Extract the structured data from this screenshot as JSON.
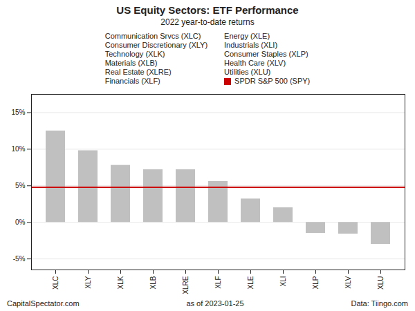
{
  "chart_data": {
    "type": "bar",
    "title": "US Equity Sectors: ETF Performance",
    "subtitle": "2022 year-to-date returns",
    "categories": [
      "XLC",
      "XLY",
      "XLK",
      "XLB",
      "XLRE",
      "XLF",
      "XLE",
      "XLI",
      "XLP",
      "XLV",
      "XLU"
    ],
    "values": [
      12.5,
      9.8,
      7.8,
      7.2,
      7.2,
      5.6,
      3.2,
      2.0,
      -1.5,
      -1.6,
      -3.0
    ],
    "color": "#c0c0c0",
    "ylim": [
      -6.5,
      17.5
    ],
    "yticks": [
      {
        "value": -5,
        "label": "-5%"
      },
      {
        "value": 0,
        "label": "0%"
      },
      {
        "value": 5,
        "label": "5%"
      },
      {
        "value": 10,
        "label": "10%"
      },
      {
        "value": 15,
        "label": "15%"
      }
    ],
    "grid": true,
    "reference_line": {
      "value": 4.8,
      "label": "SPDR S&P 500 (SPY)",
      "color": "#cc0000"
    },
    "legend_entries": [
      [
        "Communication Srvcs (XLC)",
        "Consumer Discretionary (XLY)",
        "Technology (XLK)",
        "Materials (XLB)",
        "Real Estate (XLRE)",
        "Financials (XLF)"
      ],
      [
        "Energy (XLE)",
        "Industrials (XLI)",
        "Consumer Staples (XLP)",
        "Health Care (XLV)",
        "Utilities (XLU)"
      ]
    ],
    "footer": [
      "CapitalSpectator.com",
      "as of  2023-01-25",
      "Data: Tiingo.com"
    ]
  }
}
